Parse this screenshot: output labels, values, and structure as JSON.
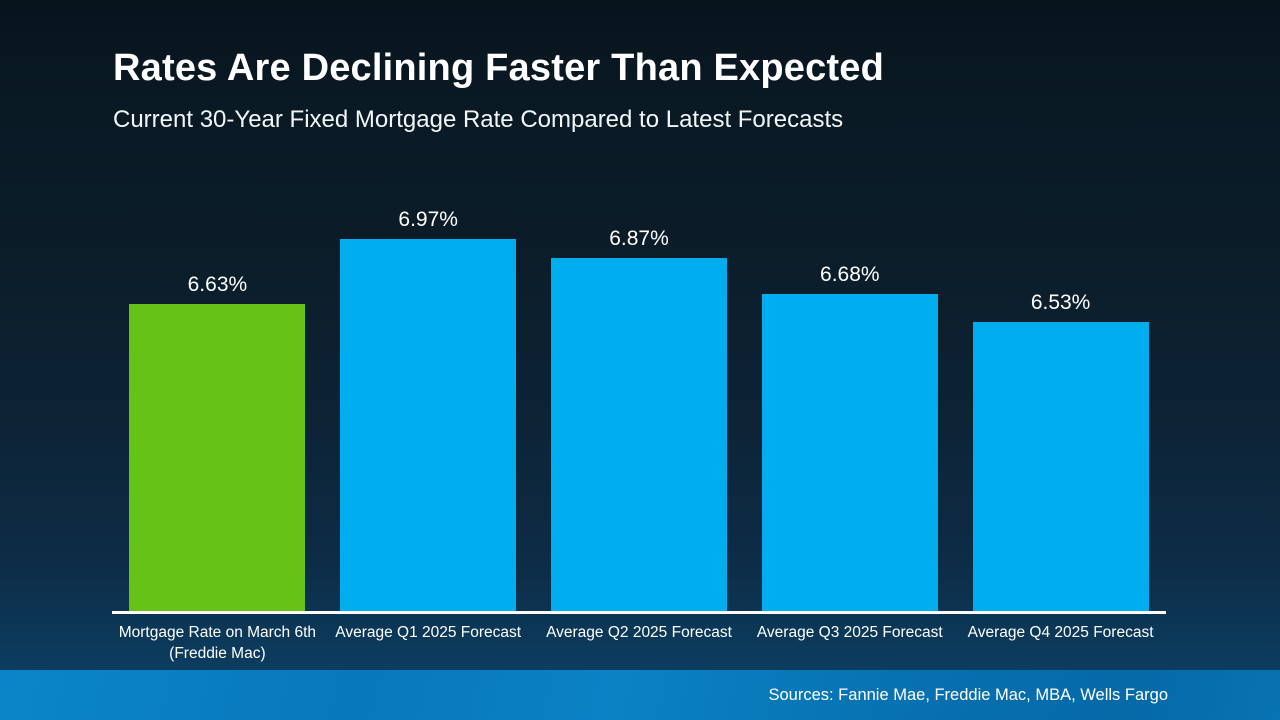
{
  "slide": {
    "title": "Rates Are Declining Faster Than Expected",
    "subtitle": "Current 30-Year Fixed Mortgage Rate Compared to Latest Forecasts",
    "source_note": "Sources: Fannie Mae, Freddie Mac, MBA, Wells Fargo"
  },
  "colors": {
    "highlight_bar_green": "#65c318",
    "forecast_bar_blue": "#00aeef",
    "background_top": "#06141c",
    "background_bottom": "#0d4166",
    "footer_band_blue": "#0a82c4",
    "axis_line": "#ffffff",
    "text": "#ffffff"
  },
  "chart_data": {
    "type": "bar",
    "title": "Current 30-Year Fixed Mortgage Rate Compared to Latest Forecasts",
    "categories": [
      "Mortgage Rate on March 6th\n(Freddie Mac)",
      "Average Q1 2025 Forecast",
      "Average Q2 2025 Forecast",
      "Average Q3 2025 Forecast",
      "Average Q4 2025 Forecast"
    ],
    "values": [
      6.63,
      6.97,
      6.87,
      6.68,
      6.53
    ],
    "labels": [
      "6.63%",
      "6.97%",
      "6.87%",
      "6.68%",
      "6.53%"
    ],
    "bar_colors": [
      "#65c318",
      "#00aeef",
      "#00aeef",
      "#00aeef",
      "#00aeef"
    ],
    "unit": "%",
    "xlabel": "",
    "ylabel": "",
    "ylim": [
      5.0,
      7.2
    ],
    "grid": false,
    "legend_position": "none",
    "value_labels_shown": true
  }
}
